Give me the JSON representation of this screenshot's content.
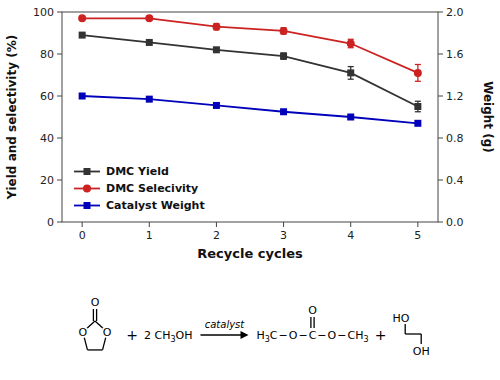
{
  "chart_data": {
    "type": "line",
    "x": [
      0,
      1,
      2,
      3,
      4,
      5
    ],
    "xlim": [
      -0.3,
      5.3
    ],
    "xticks": [
      0,
      1,
      2,
      3,
      4,
      5
    ],
    "ylim": [
      0,
      100
    ],
    "yticks": [
      0,
      20,
      40,
      60,
      80,
      100
    ],
    "y2lim": [
      0.0,
      2.0
    ],
    "y2ticks": [
      {
        "value": 0.0,
        "label": "0.0"
      },
      0.4,
      0.8,
      1.2,
      1.6,
      {
        "value": 2.0,
        "label": "2.0"
      }
    ],
    "xlabel": "Recycle cycles",
    "ylabel": "Yield and selectivity (%)",
    "y2label": "Weight (g)",
    "grid": false,
    "legend": "lower left",
    "series": [
      {
        "name": "DMC Yield",
        "color": "#333333",
        "marker": "square",
        "values": [
          89,
          85.5,
          82,
          79,
          71,
          55
        ],
        "errors": [
          0.5,
          0.5,
          0.5,
          1.5,
          3.0,
          2.5
        ]
      },
      {
        "name": "DMC Selecivity",
        "color": "#cc2222",
        "marker": "circle",
        "values": [
          97,
          97,
          93,
          91,
          85,
          71
        ],
        "errors": [
          0.5,
          0.5,
          1.5,
          1.5,
          2.0,
          4.0
        ]
      },
      {
        "name": "Catalyst Weight",
        "color": "#0000bb",
        "marker": "square",
        "values": [
          60,
          58.5,
          55.5,
          52.5,
          50,
          47
        ]
      }
    ],
    "annotations": [
      "O",
      "O",
      "O",
      "+",
      "2 CH",
      "3",
      "OH",
      "catalyst",
      "H",
      "3",
      "C",
      "−",
      "O",
      "−",
      "C",
      "O",
      "−",
      "O",
      "−",
      "CH",
      "3",
      "+",
      "HO",
      "OH"
    ]
  }
}
